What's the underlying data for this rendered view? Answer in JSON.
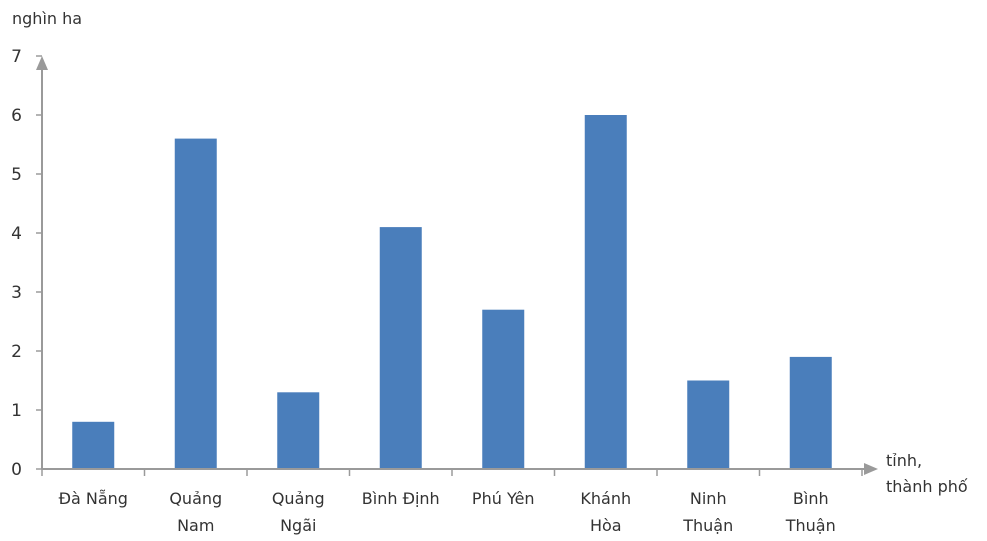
{
  "chart_data": {
    "type": "bar",
    "title": "",
    "ylabel": "nghìn ha",
    "xlabel": [
      "tỉnh,",
      "thành phố"
    ],
    "categories": [
      [
        "Đà  Nẵng"
      ],
      [
        "Quảng",
        "Nam"
      ],
      [
        "Quảng",
        "Ngãi"
      ],
      [
        "Bình Định"
      ],
      [
        "Phú Yên"
      ],
      [
        "Khánh",
        "Hòa"
      ],
      [
        "Ninh",
        "Thuận"
      ],
      [
        "Bình",
        "Thuận"
      ]
    ],
    "values": [
      0.8,
      5.6,
      1.3,
      4.1,
      2.7,
      6.0,
      1.5,
      1.9
    ],
    "ylim": [
      0,
      7
    ],
    "yticks": [
      0,
      1,
      2,
      3,
      4,
      5,
      6,
      7
    ],
    "grid": false,
    "legend": "none",
    "colors": {
      "bar": "#4a7ebb",
      "axis": "#9a9a9a",
      "text": "#333333"
    }
  }
}
